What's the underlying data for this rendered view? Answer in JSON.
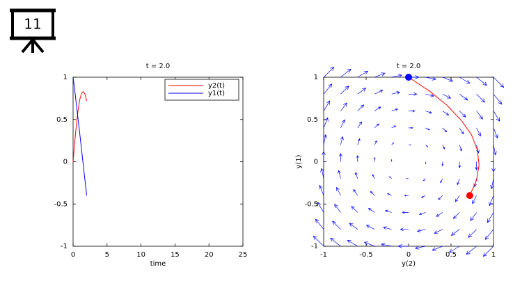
{
  "slide_number": "11",
  "chart_data": [
    {
      "type": "line",
      "title": "t = 2.0",
      "x_label": "time",
      "x": [
        0,
        0.25,
        0.5,
        0.75,
        1,
        1.25,
        1.5,
        1.75,
        2
      ],
      "series": [
        {
          "name": "y2(t)",
          "color": "#ff0000",
          "values": [
            0,
            0.24,
            0.45,
            0.62,
            0.74,
            0.81,
            0.83,
            0.8,
            0.72
          ]
        },
        {
          "name": "y1(t)",
          "color": "#0000ff",
          "values": [
            1,
            0.84,
            0.67,
            0.49,
            0.32,
            0.14,
            -0.04,
            -0.22,
            -0.4
          ]
        }
      ],
      "xlim": [
        0,
        25
      ],
      "xticks": [
        0,
        5,
        10,
        15,
        20,
        25
      ],
      "ylim": [
        -1,
        1
      ],
      "yticks": [
        -1,
        -0.5,
        0,
        0.5,
        1
      ],
      "legend": "top-right"
    },
    {
      "type": "quiver",
      "title": "t = 2.0",
      "x_label": "y(2)",
      "y_label": "y(1)",
      "x": [
        0,
        0.24,
        0.45,
        0.62,
        0.74,
        0.81,
        0.83,
        0.8,
        0.72
      ],
      "series": [
        {
          "color": "#ff0000",
          "values": [
            1,
            0.84,
            0.67,
            0.49,
            0.32,
            0.14,
            -0.04,
            -0.22,
            -0.4
          ]
        }
      ],
      "points": [
        {
          "x": 0,
          "y": 1,
          "color": "#0000ff"
        },
        {
          "x": 0.72,
          "y": -0.4,
          "color": "#ff0000"
        }
      ],
      "quiver": {
        "color": "#0000ff",
        "x": [
          -1,
          -0.8,
          -0.6,
          -0.4,
          -0.2,
          0,
          0.2,
          0.4,
          0.6,
          0.8,
          1
        ],
        "y": [
          -1,
          -0.8,
          -0.6,
          -0.4,
          -0.2,
          0,
          0.2,
          0.4,
          0.6,
          0.8,
          1
        ],
        "u": [
          [
            -1,
            -1,
            -1,
            -1,
            -1,
            -1,
            -1,
            -1,
            -1,
            -1,
            -1
          ],
          [
            -0.8,
            -0.8,
            -0.8,
            -0.8,
            -0.8,
            -0.8,
            -0.8,
            -0.8,
            -0.8,
            -0.8,
            -0.8
          ],
          [
            -0.6,
            -0.6,
            -0.6,
            -0.6,
            -0.6,
            -0.6,
            -0.6,
            -0.6,
            -0.6,
            -0.6,
            -0.6
          ],
          [
            -0.4,
            -0.4,
            -0.4,
            -0.4,
            -0.4,
            -0.4,
            -0.4,
            -0.4,
            -0.4,
            -0.4,
            -0.4
          ],
          [
            -0.2,
            -0.2,
            -0.2,
            -0.2,
            -0.2,
            -0.2,
            -0.2,
            -0.2,
            -0.2,
            -0.2,
            -0.2
          ],
          [
            0,
            0,
            0,
            0,
            0,
            0,
            0,
            0,
            0,
            0,
            0
          ],
          [
            0.2,
            0.2,
            0.2,
            0.2,
            0.2,
            0.2,
            0.2,
            0.2,
            0.2,
            0.2,
            0.2
          ],
          [
            0.4,
            0.4,
            0.4,
            0.4,
            0.4,
            0.4,
            0.4,
            0.4,
            0.4,
            0.4,
            0.4
          ],
          [
            0.6,
            0.6,
            0.6,
            0.6,
            0.6,
            0.6,
            0.6,
            0.6,
            0.6,
            0.6,
            0.6
          ],
          [
            0.8,
            0.8,
            0.8,
            0.8,
            0.8,
            0.8,
            0.8,
            0.8,
            0.8,
            0.8,
            0.8
          ],
          [
            1,
            1,
            1,
            1,
            1,
            1,
            1,
            1,
            1,
            1,
            1
          ]
        ],
        "v": [
          [
            1,
            0.8,
            0.6,
            0.4,
            0.2,
            0,
            -0.2,
            -0.4,
            -0.6,
            -0.8,
            -1
          ],
          [
            1,
            0.8,
            0.6,
            0.4,
            0.2,
            0,
            -0.2,
            -0.4,
            -0.6,
            -0.8,
            -1
          ],
          [
            1,
            0.8,
            0.6,
            0.4,
            0.2,
            0,
            -0.2,
            -0.4,
            -0.6,
            -0.8,
            -1
          ],
          [
            1,
            0.8,
            0.6,
            0.4,
            0.2,
            0,
            -0.2,
            -0.4,
            -0.6,
            -0.8,
            -1
          ],
          [
            1,
            0.8,
            0.6,
            0.4,
            0.2,
            0,
            -0.2,
            -0.4,
            -0.6,
            -0.8,
            -1
          ],
          [
            1,
            0.8,
            0.6,
            0.4,
            0.2,
            0,
            -0.2,
            -0.4,
            -0.6,
            -0.8,
            -1
          ],
          [
            1,
            0.8,
            0.6,
            0.4,
            0.2,
            0,
            -0.2,
            -0.4,
            -0.6,
            -0.8,
            -1
          ],
          [
            1,
            0.8,
            0.6,
            0.4,
            0.2,
            0,
            -0.2,
            -0.4,
            -0.6,
            -0.8,
            -1
          ],
          [
            1,
            0.8,
            0.6,
            0.4,
            0.2,
            0,
            -0.2,
            -0.4,
            -0.6,
            -0.8,
            -1
          ],
          [
            1,
            0.8,
            0.6,
            0.4,
            0.2,
            0,
            -0.2,
            -0.4,
            -0.6,
            -0.8,
            -1
          ],
          [
            1,
            0.8,
            0.6,
            0.4,
            0.2,
            0,
            -0.2,
            -0.4,
            -0.6,
            -0.8,
            -1
          ]
        ]
      },
      "xlim": [
        -1,
        1
      ],
      "xticks": [
        -1,
        -0.5,
        0,
        0.5,
        1
      ],
      "ylim": [
        -1,
        1
      ],
      "yticks": [
        -1,
        -0.5,
        0,
        0.5,
        1
      ]
    }
  ]
}
